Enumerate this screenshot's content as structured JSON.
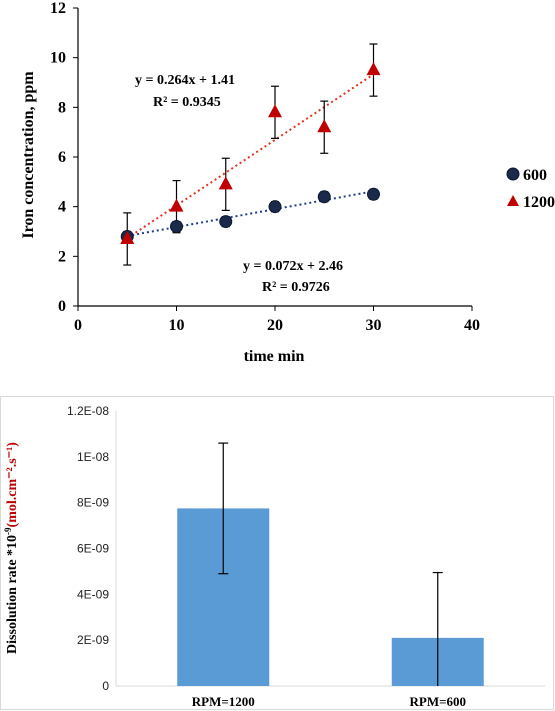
{
  "chart_data": [
    {
      "type": "scatter",
      "xlabel": "time min",
      "ylabel": "Iron concentration, ppm",
      "xlim": [
        0,
        40
      ],
      "ylim": [
        0,
        12
      ],
      "xticks": [
        "0",
        "10",
        "20",
        "30",
        "40"
      ],
      "yticks": [
        "0",
        "2",
        "4",
        "6",
        "8",
        "10",
        "12"
      ],
      "grid": false,
      "legend_position": "right",
      "series": [
        {
          "name": "600",
          "color": "#1b2a4a",
          "marker": "circle",
          "x": [
            5,
            10,
            15,
            20,
            25,
            30
          ],
          "y": [
            2.8,
            3.2,
            3.4,
            4.0,
            4.4,
            4.5
          ],
          "error": [
            0.2,
            0.2,
            0.2,
            0.2,
            0.2,
            0.2
          ],
          "trendline": {
            "slope": 0.072,
            "intercept": 2.46,
            "equation": "y = 0.072x + 2.46",
            "r2": "R² = 0.9726",
            "color": "#1f3b8c"
          }
        },
        {
          "name": "1200",
          "color": "#c00000",
          "marker": "triangle",
          "x": [
            5,
            10,
            15,
            20,
            25,
            30
          ],
          "y": [
            2.7,
            4.0,
            4.9,
            7.8,
            7.2,
            9.5
          ],
          "error": [
            1.05,
            1.05,
            1.05,
            1.05,
            1.05,
            1.05
          ],
          "trendline": {
            "slope": 0.264,
            "intercept": 1.41,
            "equation": "y = 0.264x + 1.41",
            "r2": "R² = 0.9345",
            "color": "#e03020"
          }
        }
      ]
    },
    {
      "type": "bar",
      "ylabel_prefix": "Dissolution rate *10",
      "ylabel_exp": "-9",
      "ylabel_unit": "(mol.cm⁻².s⁻¹)",
      "ylim": [
        0,
        1.2e-08
      ],
      "yticks": [
        "0",
        "2E-09",
        "4E-09",
        "6E-09",
        "8E-09",
        "1E-08",
        "1.2E-08"
      ],
      "categories": [
        "RPM=1200",
        "RPM=600"
      ],
      "values": [
        7.75e-09,
        2.1e-09
      ],
      "error": [
        2.85e-09,
        2.85e-09
      ],
      "bar_color": "#5b9bd5",
      "grid": false
    }
  ]
}
